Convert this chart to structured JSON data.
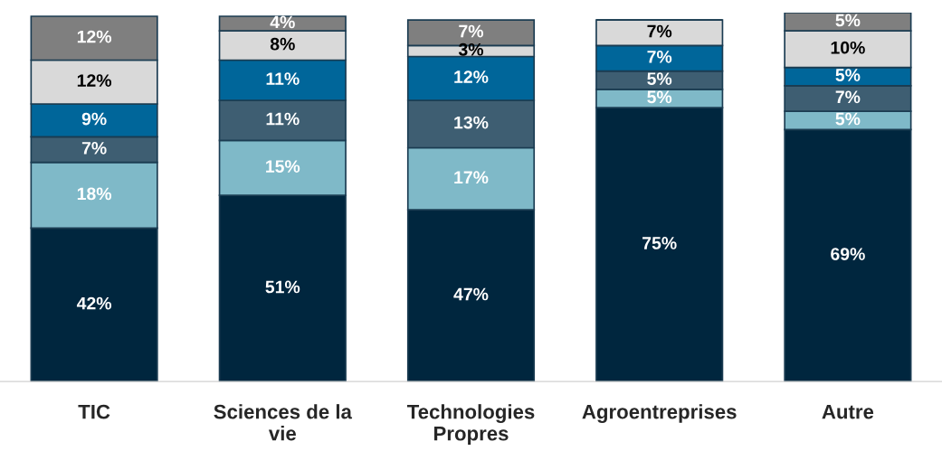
{
  "chart_data": {
    "type": "bar",
    "stacked": true,
    "legend": false,
    "grid": false,
    "tick_labels": "x",
    "categories": [
      "TIC",
      "Sciences de la\nvie",
      "Technologies\nPropres",
      "Agroentreprises",
      "Autre"
    ],
    "series": [
      {
        "color": "#00263e",
        "values": [
          42,
          51,
          47,
          75,
          69
        ],
        "value_labels": [
          "42%",
          "51%",
          "47%",
          "75%",
          "69%"
        ]
      },
      {
        "color": "#7fb9c8",
        "values": [
          18,
          15,
          17,
          5,
          5
        ],
        "value_labels": [
          "18%",
          "15%",
          "17%",
          "5%",
          "5%"
        ]
      },
      {
        "color": "#3e5e72",
        "values": [
          7,
          11,
          13,
          5,
          7
        ],
        "value_labels": [
          "7%",
          "11%",
          "13%",
          "5%",
          "7%"
        ]
      },
      {
        "color": "#00669a",
        "values": [
          9,
          11,
          12,
          7,
          5
        ],
        "value_labels": [
          "9%",
          "11%",
          "12%",
          "7%",
          "5%"
        ]
      },
      {
        "color": "#d9d9d9",
        "values": [
          12,
          8,
          3,
          7,
          10
        ],
        "value_labels": [
          "12%",
          "8%",
          "3%",
          "7%",
          "10%"
        ]
      },
      {
        "color": "#7f7f7f",
        "values": [
          12,
          4,
          7,
          null,
          5
        ],
        "value_labels": [
          "12%",
          "4%",
          "7%",
          null,
          "5%"
        ]
      }
    ]
  }
}
